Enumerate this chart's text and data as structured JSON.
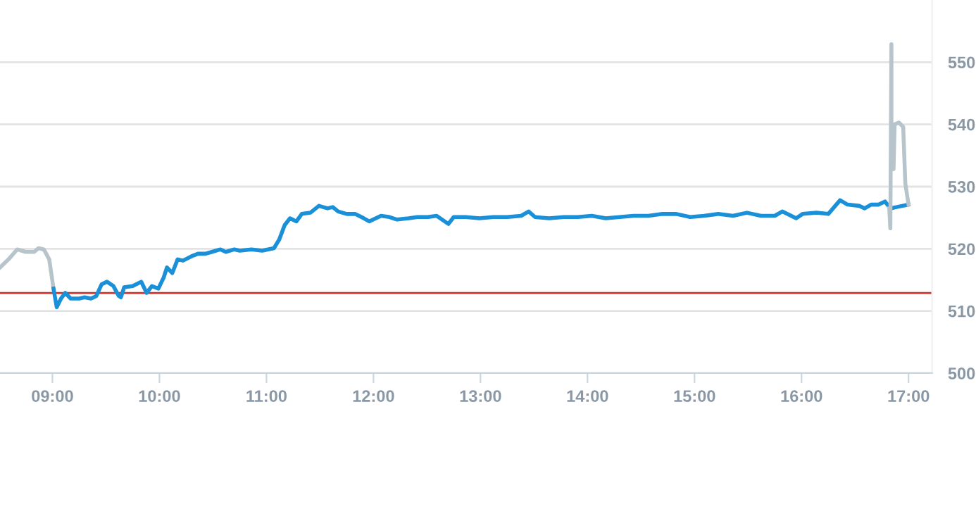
{
  "chart_data": {
    "type": "line",
    "series": [
      {
        "color": "#b8c4cc",
        "x": [
          8.51,
          8.59,
          8.67,
          8.75,
          8.83,
          8.87,
          8.92,
          8.97,
          9.01
        ],
        "values": [
          517.0,
          518.3,
          519.9,
          519.5,
          519.5,
          520.1,
          519.9,
          518.3,
          513.6
        ]
      },
      {
        "color": "#1a90d8",
        "x": [
          9.01,
          9.04,
          9.08,
          9.12,
          9.17,
          9.25,
          9.3,
          9.36,
          9.41,
          9.46,
          9.51,
          9.57,
          9.62,
          9.64,
          9.67,
          9.75,
          9.83,
          9.88,
          9.93,
          9.99,
          10.04,
          10.07,
          10.12,
          10.17,
          10.22,
          10.3,
          10.36,
          10.43,
          10.49,
          10.57,
          10.62,
          10.7,
          10.75,
          10.86,
          10.96,
          11.07,
          11.12,
          11.17,
          11.22,
          11.28,
          11.33,
          11.41,
          11.49,
          11.57,
          11.62,
          11.67,
          11.75,
          11.83,
          11.91,
          11.96,
          12.07,
          12.15,
          12.22,
          12.33,
          12.41,
          12.51,
          12.59,
          12.64,
          12.7,
          12.75,
          12.86,
          12.99,
          13.12,
          13.25,
          13.38,
          13.45,
          13.51,
          13.64,
          13.78,
          13.91,
          14.04,
          14.17,
          14.3,
          14.43,
          14.57,
          14.7,
          14.83,
          14.96,
          15.09,
          15.22,
          15.36,
          15.49,
          15.62,
          15.75,
          15.82,
          15.95,
          16.01,
          16.14,
          16.25,
          16.36,
          16.43,
          16.54,
          16.59,
          16.65,
          16.72,
          16.78,
          16.83,
          17.0
        ],
        "values": [
          513.6,
          510.6,
          512.0,
          512.9,
          512.0,
          512.0,
          512.2,
          512.0,
          512.4,
          514.3,
          514.7,
          514.0,
          512.4,
          512.2,
          513.8,
          514.0,
          514.7,
          512.9,
          514.0,
          513.6,
          515.4,
          517.0,
          516.1,
          518.3,
          518.1,
          518.8,
          519.2,
          519.2,
          519.5,
          519.9,
          519.5,
          519.9,
          519.7,
          519.9,
          519.7,
          520.1,
          521.5,
          523.8,
          524.9,
          524.4,
          525.6,
          525.8,
          526.9,
          526.5,
          526.7,
          526.0,
          525.6,
          525.6,
          524.9,
          524.4,
          525.3,
          525.1,
          524.7,
          524.9,
          525.1,
          525.1,
          525.3,
          524.7,
          524.0,
          525.1,
          525.1,
          524.9,
          525.1,
          525.1,
          525.3,
          526.0,
          525.1,
          524.9,
          525.1,
          525.1,
          525.3,
          524.9,
          525.1,
          525.3,
          525.3,
          525.6,
          525.6,
          525.1,
          525.3,
          525.6,
          525.3,
          525.8,
          525.3,
          525.3,
          526.0,
          524.9,
          525.6,
          525.8,
          525.6,
          527.8,
          527.1,
          526.9,
          526.5,
          527.1,
          527.1,
          527.6,
          526.5,
          527.1
        ]
      },
      {
        "color": "#b8c4cc",
        "x": [
          16.82,
          16.83,
          16.84,
          16.84,
          16.86,
          16.87,
          16.91,
          16.95,
          16.97,
          17.0
        ],
        "values": [
          526.5,
          523.3,
          552.9,
          536.2,
          532.8,
          540.0,
          540.3,
          539.6,
          530.5,
          527.1
        ]
      }
    ],
    "xlim": [
      8.51,
      17.22
    ],
    "xticks": [
      {
        "value": 9,
        "label": "09:00"
      },
      {
        "value": 10,
        "label": "10:00"
      },
      {
        "value": 11,
        "label": "11:00"
      },
      {
        "value": 12,
        "label": "12:00"
      },
      {
        "value": 13,
        "label": "13:00"
      },
      {
        "value": 14,
        "label": "14:00"
      },
      {
        "value": 15,
        "label": "15:00"
      },
      {
        "value": 16,
        "label": "16:00"
      },
      {
        "value": 17,
        "label": "17:00"
      }
    ],
    "ylim": [
      500,
      560
    ],
    "yticks": [
      500,
      510,
      520,
      530,
      540,
      550
    ],
    "grid": "y",
    "legend": false,
    "line_style": "solid",
    "marker": "none",
    "ref_lines": [
      {
        "axis": "y",
        "value": 512.9,
        "color": "#d0302b"
      }
    ]
  }
}
